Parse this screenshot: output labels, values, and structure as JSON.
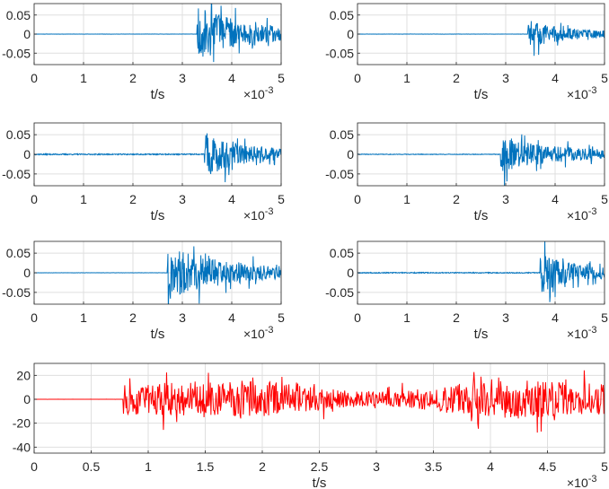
{
  "chart_data": [
    {
      "type": "line",
      "xlabel": "t/s",
      "exponent_label": "×10-3",
      "xlim": [
        0,
        5
      ],
      "ylim": [
        -0.08,
        0.08
      ],
      "grid": true,
      "x_ticks": [
        "0",
        "1",
        "2",
        "3",
        "4",
        "5"
      ],
      "y_ticks": [
        "0.05",
        "0",
        "-0.05"
      ],
      "y_tick_values": [
        0.05,
        0,
        -0.05
      ],
      "x_tick_values": [
        0,
        1,
        2,
        3,
        4,
        5
      ],
      "color": "#0072BD",
      "signal_start": 3.3,
      "noise_amp": 0.0003,
      "peak_amp": 0.075,
      "seed": 11
    },
    {
      "type": "line",
      "xlabel": "t/s",
      "exponent_label": "×10-3",
      "xlim": [
        0,
        5
      ],
      "ylim": [
        -0.08,
        0.08
      ],
      "grid": true,
      "x_ticks": [
        "0",
        "1",
        "2",
        "3",
        "4",
        "5"
      ],
      "y_ticks": [
        "0.05",
        "0",
        "-0.05"
      ],
      "y_tick_values": [
        0.05,
        0,
        -0.05
      ],
      "x_tick_values": [
        0,
        1,
        2,
        3,
        4,
        5
      ],
      "color": "#0072BD",
      "signal_start": 3.45,
      "noise_amp": 0.0003,
      "peak_amp": 0.035,
      "seed": 23
    },
    {
      "type": "line",
      "xlabel": "t/s",
      "exponent_label": "×10-3",
      "xlim": [
        0,
        5
      ],
      "ylim": [
        -0.08,
        0.08
      ],
      "grid": true,
      "x_ticks": [
        "0",
        "1",
        "2",
        "3",
        "4",
        "5"
      ],
      "y_ticks": [
        "0.05",
        "0",
        "-0.05"
      ],
      "y_tick_values": [
        0.05,
        0,
        -0.05
      ],
      "x_tick_values": [
        0,
        1,
        2,
        3,
        4,
        5
      ],
      "color": "#0072BD",
      "signal_start": 3.45,
      "noise_amp": 0.0015,
      "peak_amp": 0.055,
      "seed": 37
    },
    {
      "type": "line",
      "xlabel": "t/s",
      "exponent_label": "×10-3",
      "xlim": [
        0,
        5
      ],
      "ylim": [
        -0.08,
        0.08
      ],
      "grid": true,
      "x_ticks": [
        "0",
        "1",
        "2",
        "3",
        "4",
        "5"
      ],
      "y_ticks": [
        "0.05",
        "0",
        "-0.05"
      ],
      "y_tick_values": [
        0.05,
        0,
        -0.05
      ],
      "x_tick_values": [
        0,
        1,
        2,
        3,
        4,
        5
      ],
      "color": "#0072BD",
      "signal_start": 2.9,
      "noise_amp": 0.0008,
      "peak_amp": 0.045,
      "seed": 41
    },
    {
      "type": "line",
      "xlabel": "t/s",
      "exponent_label": "×10-3",
      "xlim": [
        0,
        5
      ],
      "ylim": [
        -0.08,
        0.08
      ],
      "grid": true,
      "x_ticks": [
        "0",
        "1",
        "2",
        "3",
        "4",
        "5"
      ],
      "y_ticks": [
        "0.05",
        "0",
        "-0.05"
      ],
      "y_tick_values": [
        0.05,
        0,
        -0.05
      ],
      "x_tick_values": [
        0,
        1,
        2,
        3,
        4,
        5
      ],
      "color": "#0072BD",
      "signal_start": 2.7,
      "noise_amp": 0.0003,
      "peak_amp": 0.065,
      "seed": 53
    },
    {
      "type": "line",
      "xlabel": "t/s",
      "exponent_label": "×10-3",
      "xlim": [
        0,
        5
      ],
      "ylim": [
        -0.08,
        0.08
      ],
      "grid": true,
      "x_ticks": [
        "0",
        "1",
        "2",
        "3",
        "4",
        "5"
      ],
      "y_ticks": [
        "0.05",
        "0",
        "-0.05"
      ],
      "y_tick_values": [
        0.05,
        0,
        -0.05
      ],
      "x_tick_values": [
        0,
        1,
        2,
        3,
        4,
        5
      ],
      "color": "#0072BD",
      "signal_start": 3.7,
      "noise_amp": 0.0012,
      "peak_amp": 0.05,
      "seed": 67
    },
    {
      "type": "line",
      "xlabel": "t/s",
      "exponent_label": "×10-3",
      "xlim": [
        0,
        5
      ],
      "ylim": [
        -45,
        30
      ],
      "grid": true,
      "x_ticks": [
        "0",
        "0.5",
        "1",
        "1.5",
        "2",
        "2.5",
        "3",
        "3.5",
        "4",
        "4.5",
        "5"
      ],
      "x_tick_values": [
        0,
        0.5,
        1,
        1.5,
        2,
        2.5,
        3,
        3.5,
        4,
        4.5,
        5
      ],
      "y_ticks": [
        "20",
        "0",
        "-20",
        "-40"
      ],
      "y_tick_values": [
        20,
        0,
        -20,
        -40
      ],
      "color": "#FF0000",
      "signal_start": 0.78,
      "noise_amp": 0.05,
      "peak_amp": 14,
      "seed": 79
    }
  ]
}
